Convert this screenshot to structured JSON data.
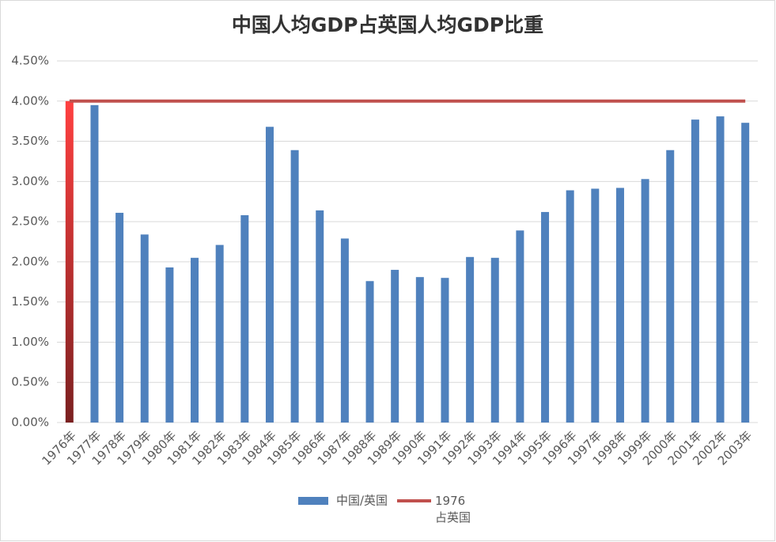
{
  "chart_data": {
    "type": "bar",
    "title": "中国人均GDP占英国人均GDP比重",
    "categories": [
      "1976年",
      "1977年",
      "1978年",
      "1979年",
      "1980年",
      "1981年",
      "1982年",
      "1983年",
      "1984年",
      "1985年",
      "1986年",
      "1987年",
      "1988年",
      "1989年",
      "1990年",
      "1991年",
      "1992年",
      "1993年",
      "1994年",
      "1995年",
      "1996年",
      "1997年",
      "1998年",
      "1999年",
      "2000年",
      "2001年",
      "2002年",
      "2003年"
    ],
    "series": [
      {
        "name": "中国/英国",
        "type": "bar",
        "color": "#4f81bd",
        "highlight_index": 0,
        "highlight_color": "#ff4040",
        "values": [
          4.0,
          3.95,
          2.61,
          2.34,
          1.93,
          2.05,
          2.21,
          2.58,
          3.68,
          3.39,
          2.64,
          2.29,
          1.76,
          1.9,
          1.81,
          1.8,
          2.06,
          2.05,
          2.39,
          2.62,
          2.89,
          2.91,
          2.92,
          3.03,
          3.39,
          3.77,
          3.81,
          3.73
        ]
      },
      {
        "name": "1976 占英国",
        "type": "line",
        "color": "#c0504d",
        "values": [
          4,
          4,
          4,
          4,
          4,
          4,
          4,
          4,
          4,
          4,
          4,
          4,
          4,
          4,
          4,
          4,
          4,
          4,
          4,
          4,
          4,
          4,
          4,
          4,
          4,
          4,
          4,
          4
        ]
      }
    ],
    "ylim": [
      0,
      4.5
    ],
    "yticks": [
      {
        "value": 0,
        "label": "0.00%"
      },
      {
        "value": 0.5,
        "label": "0.50%"
      },
      {
        "value": 1,
        "label": "1.00%"
      },
      {
        "value": 1.5,
        "label": "1.50%"
      },
      {
        "value": 2,
        "label": "2.00%"
      },
      {
        "value": 2.5,
        "label": "2.50%"
      },
      {
        "value": 3,
        "label": "3.00%"
      },
      {
        "value": 3.5,
        "label": "3.50%"
      },
      {
        "value": 4,
        "label": "4.00%"
      },
      {
        "value": 4.5,
        "label": "4.50%"
      }
    ],
    "grid": true,
    "legend": "bottom"
  }
}
